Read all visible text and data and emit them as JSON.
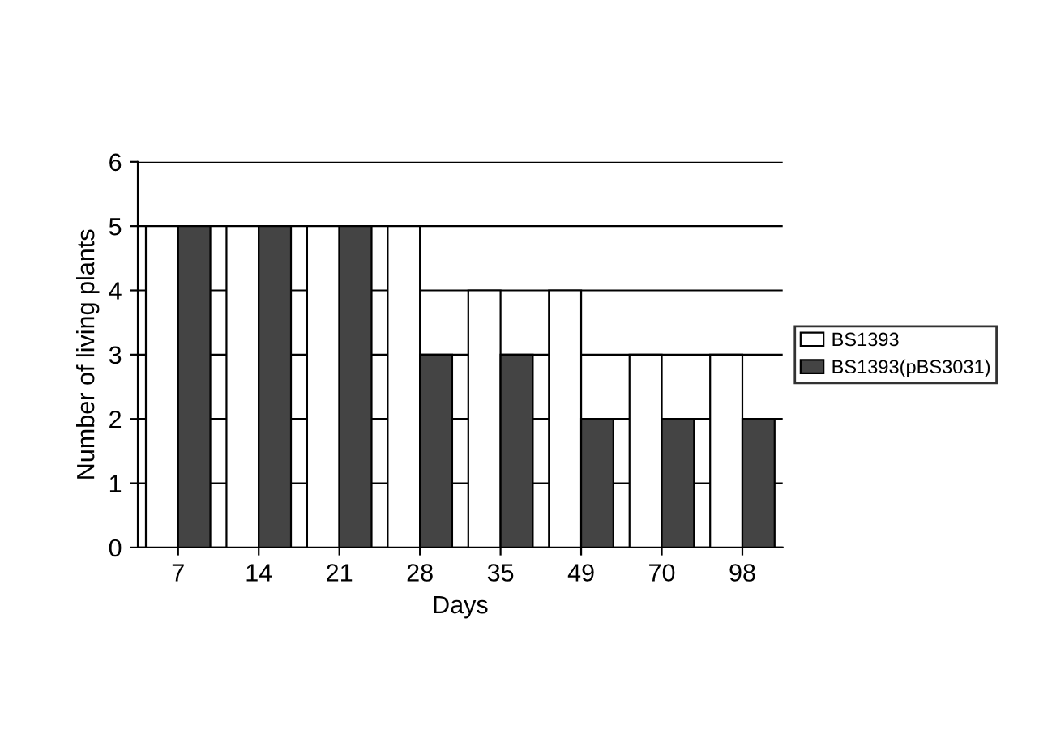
{
  "chart_data": {
    "type": "bar",
    "xlabel": "Days",
    "ylabel": "Number of living plants",
    "categories": [
      "7",
      "14",
      "21",
      "28",
      "35",
      "49",
      "70",
      "98"
    ],
    "series": [
      {
        "name": "BS1393",
        "color": "#ffffff",
        "values": [
          5,
          5,
          5,
          5,
          4,
          4,
          3,
          3
        ]
      },
      {
        "name": "BS1393(pBS3031)",
        "color": "#444444",
        "values": [
          5,
          5,
          5,
          3,
          3,
          2,
          2,
          2
        ]
      }
    ],
    "ylim": [
      0,
      6
    ],
    "yticks": [
      0,
      1,
      2,
      3,
      4,
      5,
      6
    ],
    "grid": "y",
    "legend": "right"
  }
}
